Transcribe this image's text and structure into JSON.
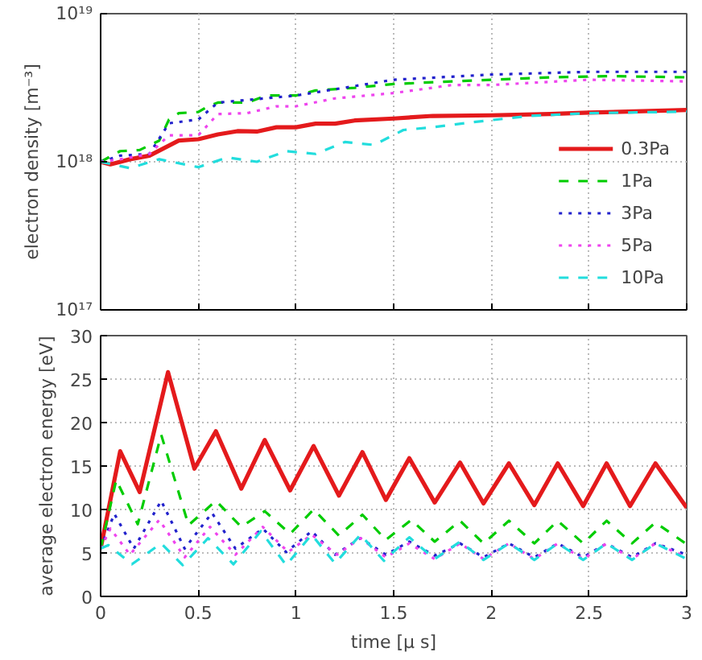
{
  "chart_data": [
    {
      "type": "line",
      "ylabel": "electron density [m⁻³]",
      "log": "y",
      "xlim": [
        0,
        3
      ],
      "xticks": [
        0,
        0.5,
        1,
        1.5,
        2,
        2.5,
        3
      ],
      "ylim": [
        1e+17,
        1e+19
      ],
      "yticks": [
        {
          "value": 1e+17,
          "label": "10¹⁷"
        },
        {
          "value": 1e+18,
          "label": "10¹⁸"
        },
        {
          "value": 1e+19,
          "label": "10¹⁹"
        }
      ],
      "tick_labels": "y",
      "grid": true,
      "legend": "bottom right",
      "series": [
        {
          "name": "0.3Pa",
          "color": "#e41a1c",
          "line_style": "solid",
          "x": [
            0,
            0.05,
            0.15,
            0.25,
            0.4,
            0.5,
            0.6,
            0.7,
            0.8,
            0.9,
            1.0,
            1.1,
            1.2,
            1.3,
            1.5,
            1.7,
            2.0,
            2.3,
            2.5,
            2.7,
            3.0
          ],
          "values": [
            1e+18,
            9.6e+17,
            1.04e+18,
            1.1e+18,
            1.39e+18,
            1.42e+18,
            1.53e+18,
            1.61e+18,
            1.6e+18,
            1.71e+18,
            1.71e+18,
            1.81e+18,
            1.81e+18,
            1.9e+18,
            1.96e+18,
            2.04e+18,
            2.06e+18,
            2.1e+18,
            2.15e+18,
            2.18e+18,
            2.24e+18
          ]
        },
        {
          "name": "1Pa",
          "color": "#00cc00",
          "line_style": "dashed",
          "x": [
            0,
            0.1,
            0.2,
            0.3,
            0.35,
            0.4,
            0.5,
            0.55,
            0.6,
            0.75,
            0.85,
            1.0,
            1.1,
            1.3,
            1.5,
            1.8,
            2.0,
            2.3,
            2.6,
            3.0
          ],
          "values": [
            1e+18,
            1.18e+18,
            1.2e+18,
            1.39e+18,
            1.93e+18,
            2.13e+18,
            2.17e+18,
            2.37e+18,
            2.51e+18,
            2.51e+18,
            2.8e+18,
            2.8e+18,
            3.03e+18,
            3.16e+18,
            3.35e+18,
            3.49e+18,
            3.58e+18,
            3.72e+18,
            3.79e+18,
            3.72e+18
          ]
        },
        {
          "name": "3Pa",
          "color": "#2222cc",
          "line_style": "dotted",
          "x": [
            0,
            0.1,
            0.25,
            0.35,
            0.5,
            0.6,
            1.0,
            1.5,
            2.0,
            2.5,
            3.0
          ],
          "values": [
            1e+18,
            1.1e+18,
            1.13e+18,
            1.82e+18,
            1.93e+18,
            2.51e+18,
            2.8e+18,
            3.58e+18,
            3.88e+18,
            4.05e+18,
            4.05e+18
          ]
        },
        {
          "name": "5Pa",
          "color": "#ee44ee",
          "line_style": "dotted",
          "x": [
            0,
            0.1,
            0.25,
            0.35,
            0.5,
            0.6,
            0.75,
            0.9,
            1.0,
            1.2,
            1.5,
            1.8,
            2.0,
            2.5,
            3.0
          ],
          "values": [
            1e+18,
            1.04e+18,
            1.13e+18,
            1.51e+18,
            1.51e+18,
            2.1e+18,
            2.13e+18,
            2.37e+18,
            2.37e+18,
            2.68e+18,
            2.91e+18,
            3.3e+18,
            3.3e+18,
            3.58e+18,
            3.49e+18
          ]
        },
        {
          "name": "10Pa",
          "color": "#22dddd",
          "line_style": "dashed",
          "x": [
            0,
            0.15,
            0.3,
            0.5,
            0.65,
            0.8,
            0.95,
            1.1,
            1.25,
            1.4,
            1.55,
            1.7,
            1.9,
            2.2,
            2.5,
            3.0
          ],
          "values": [
            1e+18,
            9.06e+17,
            1.04e+18,
            9.2e+17,
            1.07e+18,
            1e+18,
            1.18e+18,
            1.13e+18,
            1.36e+18,
            1.3e+18,
            1.64e+18,
            1.71e+18,
            1.85e+18,
            2.04e+18,
            2.13e+18,
            2.18e+18
          ]
        }
      ]
    },
    {
      "type": "line",
      "xlabel": "time [μ s]",
      "ylabel": "average electron energy [eV]",
      "xlim": [
        0,
        3
      ],
      "xticks": [
        0,
        0.5,
        1,
        1.5,
        2,
        2.5,
        3
      ],
      "ylim": [
        0,
        30
      ],
      "yticks": [
        0,
        5,
        10,
        15,
        20,
        25,
        30
      ],
      "grid": true,
      "series": [
        {
          "color": "#e41a1c",
          "line_style": "solid",
          "x": [
            0,
            0.1,
            0.2,
            0.345,
            0.48,
            0.59,
            0.72,
            0.84,
            0.97,
            1.09,
            1.22,
            1.34,
            1.46,
            1.58,
            1.71,
            1.84,
            1.96,
            2.09,
            2.22,
            2.34,
            2.47,
            2.59,
            2.71,
            2.84,
            3.0
          ],
          "values": [
            5.5,
            16.7,
            12,
            25.8,
            14.7,
            19,
            12.4,
            18,
            12.2,
            17.3,
            11.6,
            16.6,
            11.1,
            15.9,
            10.8,
            15.4,
            10.7,
            15.3,
            10.5,
            15.3,
            10.4,
            15.3,
            10.4,
            15.3,
            10.2
          ]
        },
        {
          "color": "#00cc00",
          "line_style": "dashed",
          "x": [
            0,
            0.08,
            0.19,
            0.31,
            0.45,
            0.59,
            0.72,
            0.84,
            0.97,
            1.09,
            1.22,
            1.34,
            1.46,
            1.59,
            1.71,
            1.84,
            1.96,
            2.09,
            2.22,
            2.34,
            2.47,
            2.59,
            2.72,
            2.84,
            3.0
          ],
          "values": [
            5.5,
            13.4,
            8.3,
            18.6,
            8.2,
            11,
            8.0,
            9.8,
            7.2,
            10,
            7,
            9.4,
            6.5,
            8.8,
            6.3,
            8.7,
            6.1,
            8.7,
            6.1,
            8.7,
            6.1,
            8.7,
            6.1,
            8.5,
            6.0
          ]
        },
        {
          "color": "#2222cc",
          "line_style": "dotted",
          "x": [
            0,
            0.07,
            0.17,
            0.31,
            0.43,
            0.57,
            0.69,
            0.83,
            0.95,
            1.08,
            1.2,
            1.33,
            1.46,
            1.58,
            1.71,
            1.84,
            1.96,
            2.09,
            2.22,
            2.34,
            2.47,
            2.59,
            2.72,
            2.84,
            3.0
          ],
          "values": [
            5.5,
            9.5,
            5.5,
            11,
            5.5,
            9.6,
            5.5,
            7.8,
            5.1,
            7.5,
            4.8,
            6.7,
            4.8,
            6.3,
            4.7,
            6.1,
            4.5,
            6.1,
            4.5,
            6.1,
            4.5,
            6.1,
            4.5,
            6.1,
            4.8
          ]
        },
        {
          "color": "#ee44ee",
          "line_style": "dotted",
          "x": [
            0,
            0.05,
            0.15,
            0.3,
            0.43,
            0.56,
            0.69,
            0.83,
            0.96,
            1.08,
            1.21,
            1.33,
            1.46,
            1.58,
            1.71,
            1.84,
            1.96,
            2.09,
            2.22,
            2.34,
            2.47,
            2.59,
            2.72,
            2.84,
            3.0
          ],
          "values": [
            5.5,
            7.8,
            4.8,
            8.8,
            4.5,
            8.0,
            4.8,
            8.0,
            5.1,
            7.1,
            4.8,
            6.7,
            4.5,
            6.1,
            4.3,
            6.1,
            4.3,
            6.1,
            4.3,
            6.1,
            4.3,
            6.1,
            4.3,
            6.1,
            4.5
          ]
        },
        {
          "color": "#22dddd",
          "line_style": "dashed",
          "x": [
            0,
            0.04,
            0.16,
            0.31,
            0.42,
            0.55,
            0.68,
            0.82,
            0.95,
            1.08,
            1.2,
            1.33,
            1.45,
            1.58,
            1.71,
            1.84,
            1.96,
            2.09,
            2.22,
            2.34,
            2.47,
            2.59,
            2.72,
            2.84,
            3.0
          ],
          "values": [
            5.5,
            5.9,
            3.7,
            6.1,
            3.6,
            6.7,
            3.7,
            7.5,
            3.6,
            7.1,
            3.8,
            7.1,
            4.1,
            6.8,
            4.3,
            6.3,
            4.2,
            6.1,
            4.2,
            6.1,
            4.2,
            6.1,
            4.2,
            6.1,
            4.3
          ]
        }
      ]
    }
  ]
}
